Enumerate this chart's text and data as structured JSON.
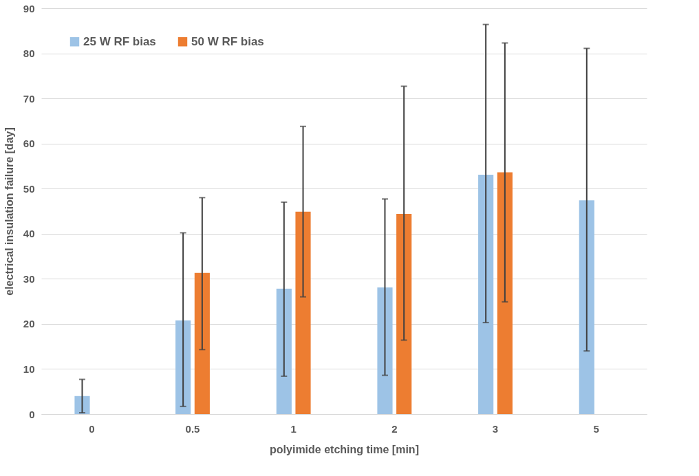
{
  "chart_data": {
    "type": "bar",
    "xlabel": "polyimide etching time [min]",
    "ylabel": "electrical insulation failure [day]",
    "categories": [
      "0",
      "0.5",
      "1",
      "2",
      "3",
      "5"
    ],
    "series": [
      {
        "name": "25 W RF bias",
        "color": "#9dc3e6",
        "values": [
          4.0,
          20.8,
          27.8,
          28.1,
          53.1,
          47.4
        ],
        "errors": [
          [
            0.3,
            7.7
          ],
          [
            1.7,
            40.2
          ],
          [
            8.4,
            47.0
          ],
          [
            8.6,
            47.7
          ],
          [
            20.3,
            86.4
          ],
          [
            14.0,
            81.1
          ]
        ]
      },
      {
        "name": "50 W RF bias",
        "color": "#ed7d31",
        "values": [
          null,
          31.3,
          44.9,
          44.4,
          53.6,
          null
        ],
        "errors": [
          null,
          [
            14.3,
            48.0
          ],
          [
            26.0,
            63.8
          ],
          [
            16.4,
            72.7
          ],
          [
            24.9,
            82.3
          ],
          null
        ]
      }
    ],
    "ylim": [
      0,
      90
    ],
    "yticks": [
      0,
      10,
      20,
      30,
      40,
      50,
      60,
      70,
      80,
      90
    ],
    "grid": "y",
    "legend": "top left"
  }
}
